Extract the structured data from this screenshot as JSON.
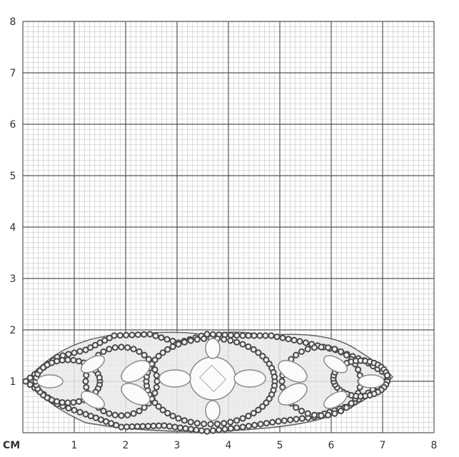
{
  "scale": {
    "unit_label": "CM",
    "x_ticks": [
      "1",
      "2",
      "3",
      "4",
      "5",
      "6",
      "7",
      "8"
    ],
    "y_ticks": [
      "1",
      "2",
      "3",
      "4",
      "5",
      "6",
      "7",
      "8"
    ],
    "minor_divisions_per_unit": 10
  },
  "object": {
    "icon": "diamond-brooch-photo",
    "metal_color": "#4a4a4a",
    "stone_color": "#f2f2f2"
  }
}
